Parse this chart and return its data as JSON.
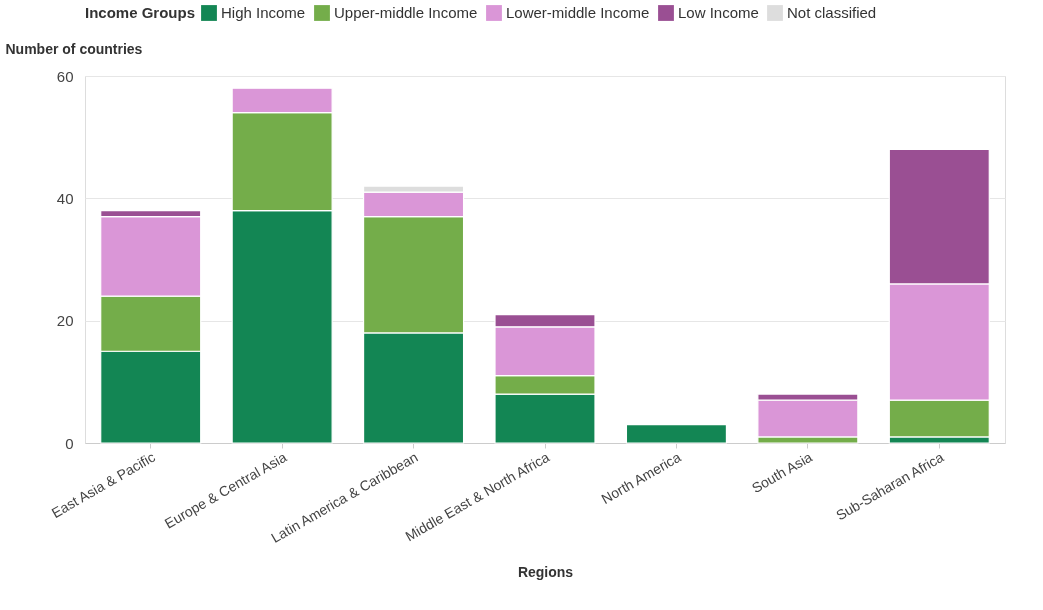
{
  "chart_data": {
    "type": "bar",
    "stacked": true,
    "xlabel": "Regions",
    "ylabel": "Number of countries",
    "legend_title": "Income Groups",
    "legend": "top",
    "grid": "y",
    "categories": [
      "East Asia & Pacific",
      "Europe & Central Asia",
      "Latin America & Caribbean",
      "Middle East & North Africa",
      "North America",
      "South Asia",
      "Sub-Saharan Africa"
    ],
    "ylim": [
      0,
      60
    ],
    "yticks": [
      0,
      20,
      40,
      60
    ],
    "series": [
      {
        "name": "High Income",
        "color": "#138654",
        "values": [
          15,
          38,
          18,
          8,
          3,
          null,
          1
        ]
      },
      {
        "name": "Upper-middle Income",
        "color": "#74ad4a",
        "values": [
          9,
          16,
          19,
          3,
          null,
          1,
          6
        ]
      },
      {
        "name": "Lower-middle Income",
        "color": "#da96d7",
        "values": [
          13,
          4,
          4,
          8,
          null,
          6,
          19
        ]
      },
      {
        "name": "Low Income",
        "color": "#9a4f93",
        "values": [
          1,
          null,
          null,
          2,
          null,
          1,
          22
        ]
      },
      {
        "name": "Not classified",
        "color": "#dddddd",
        "values": [
          null,
          null,
          1,
          null,
          null,
          null,
          null
        ]
      }
    ]
  }
}
